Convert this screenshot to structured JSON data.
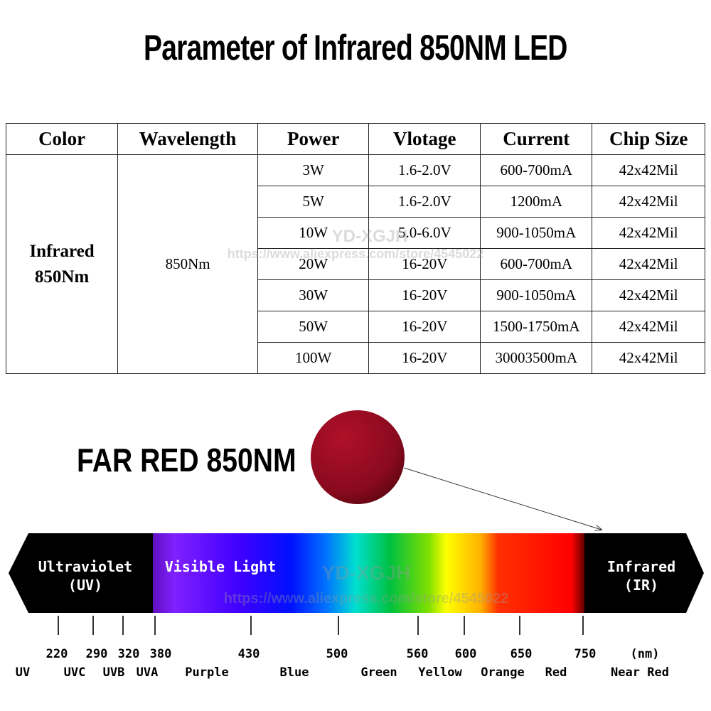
{
  "header": {
    "title": "Parameter of Infrared 850NM LED"
  },
  "table": {
    "columns": [
      "Color",
      "Wavelength",
      "Power",
      "Vlotage",
      "Current",
      "Chip Size"
    ],
    "color": "Infrared 850Nm",
    "wavelength": "850Nm",
    "rows": [
      [
        "3W",
        "1.6-2.0V",
        "600-700mA",
        "42x42Mil"
      ],
      [
        "5W",
        "1.6-2.0V",
        "1200mA",
        "42x42Mil"
      ],
      [
        "10W",
        "5.0-6.0V",
        "900-1050mA",
        "42x42Mil"
      ],
      [
        "20W",
        "16-20V",
        "600-700mA",
        "42x42Mil"
      ],
      [
        "30W",
        "16-20V",
        "900-1050mA",
        "42x42Mil"
      ],
      [
        "50W",
        "16-20V",
        "1500-1750mA",
        "42x42Mil"
      ],
      [
        "100W",
        "16-20V",
        "30003500mA",
        "42x42Mil"
      ]
    ]
  },
  "label": "FAR RED 850NM",
  "spectrum": {
    "regions": [
      [
        "Ultraviolet",
        "(UV)"
      ],
      [
        "Visible Light"
      ],
      [
        "Infrared",
        "(IR)"
      ]
    ],
    "ticks": [
      "220",
      "290",
      "320",
      "380",
      "430",
      "500",
      "560",
      "600",
      "650",
      "750",
      "(nm)"
    ],
    "bands": [
      "UV",
      "UVC",
      "UVB",
      "UVA",
      "Purple",
      "Blue",
      "Green",
      "Yellow",
      "Orange",
      "Red",
      "Near Red"
    ]
  },
  "watermarks": {
    "brand": "YD-XGJH",
    "url": "https://www.aliexpress.com/store/4545022"
  }
}
